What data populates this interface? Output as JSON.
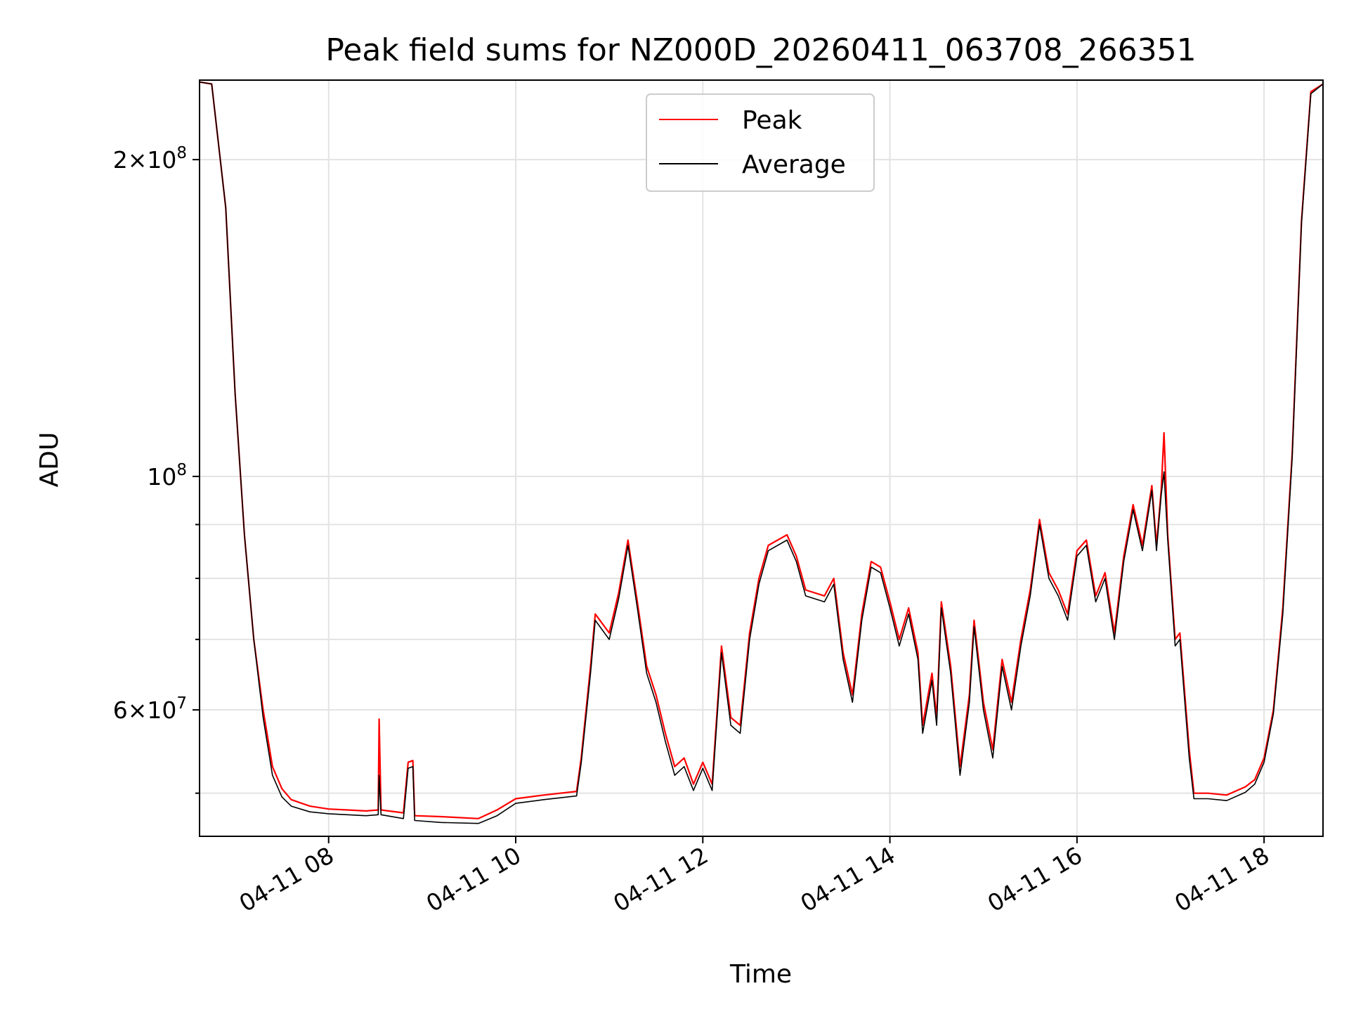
{
  "chart_data": {
    "type": "line",
    "title": "Peak field sums for NZ000D_20260411_063708_266351",
    "xlabel": "Time",
    "ylabel": "ADU",
    "yscale": "log",
    "xlim_hours": [
      6.62,
      18.63
    ],
    "ylim": [
      45500000,
      238000000
    ],
    "grid": true,
    "legend_position": "upper-center",
    "x_ticks": [
      {
        "hour": 8,
        "label": "04-11 08"
      },
      {
        "hour": 10,
        "label": "04-11 10"
      },
      {
        "hour": 12,
        "label": "04-11 12"
      },
      {
        "hour": 14,
        "label": "04-11 14"
      },
      {
        "hour": 16,
        "label": "04-11 16"
      },
      {
        "hour": 18,
        "label": "04-11 18"
      }
    ],
    "y_major_ticks": [
      {
        "value": 60000000,
        "base": "6",
        "exp": "7"
      },
      {
        "value": 100000000,
        "base": "",
        "exp": "8"
      },
      {
        "value": 200000000,
        "base": "2",
        "exp": "8"
      }
    ],
    "y_minor_ticks": [
      50000000,
      70000000,
      80000000,
      90000000
    ],
    "series": [
      {
        "name": "Peak",
        "color": "#ff0000",
        "points": [
          [
            6.62,
            237000000
          ],
          [
            6.75,
            236000000
          ],
          [
            6.9,
            180000000
          ],
          [
            7.0,
            120000000
          ],
          [
            7.1,
            88000000
          ],
          [
            7.2,
            70000000
          ],
          [
            7.3,
            60000000
          ],
          [
            7.4,
            53000000
          ],
          [
            7.5,
            50500000
          ],
          [
            7.6,
            49300000
          ],
          [
            7.8,
            48600000
          ],
          [
            8.0,
            48300000
          ],
          [
            8.2,
            48200000
          ],
          [
            8.4,
            48100000
          ],
          [
            8.53,
            48200000
          ],
          [
            8.54,
            58800000
          ],
          [
            8.56,
            48200000
          ],
          [
            8.8,
            47900000
          ],
          [
            8.85,
            53500000
          ],
          [
            8.9,
            53700000
          ],
          [
            8.92,
            47600000
          ],
          [
            9.2,
            47500000
          ],
          [
            9.6,
            47300000
          ],
          [
            9.8,
            48200000
          ],
          [
            10.0,
            49400000
          ],
          [
            10.3,
            49800000
          ],
          [
            10.65,
            50200000
          ],
          [
            10.7,
            54000000
          ],
          [
            10.8,
            66000000
          ],
          [
            10.85,
            74000000
          ],
          [
            11.0,
            71000000
          ],
          [
            11.1,
            77500000
          ],
          [
            11.2,
            87000000
          ],
          [
            11.3,
            76000000
          ],
          [
            11.4,
            66000000
          ],
          [
            11.5,
            62000000
          ],
          [
            11.6,
            57000000
          ],
          [
            11.7,
            53000000
          ],
          [
            11.8,
            54000000
          ],
          [
            11.9,
            51000000
          ],
          [
            12.0,
            53500000
          ],
          [
            12.1,
            51000000
          ],
          [
            12.2,
            69000000
          ],
          [
            12.3,
            59000000
          ],
          [
            12.4,
            58000000
          ],
          [
            12.5,
            71000000
          ],
          [
            12.6,
            80000000
          ],
          [
            12.7,
            86000000
          ],
          [
            12.9,
            88000000
          ],
          [
            13.0,
            84000000
          ],
          [
            13.1,
            78000000
          ],
          [
            13.3,
            77000000
          ],
          [
            13.4,
            80000000
          ],
          [
            13.5,
            68000000
          ],
          [
            13.6,
            62000000
          ],
          [
            13.7,
            74000000
          ],
          [
            13.8,
            83000000
          ],
          [
            13.9,
            82000000
          ],
          [
            14.0,
            76000000
          ],
          [
            14.1,
            70000000
          ],
          [
            14.2,
            75000000
          ],
          [
            14.3,
            68000000
          ],
          [
            14.35,
            58000000
          ],
          [
            14.45,
            65000000
          ],
          [
            14.5,
            59000000
          ],
          [
            14.55,
            76000000
          ],
          [
            14.65,
            66000000
          ],
          [
            14.75,
            53000000
          ],
          [
            14.85,
            62000000
          ],
          [
            14.9,
            73000000
          ],
          [
            15.0,
            61000000
          ],
          [
            15.1,
            55000000
          ],
          [
            15.2,
            67000000
          ],
          [
            15.3,
            61000000
          ],
          [
            15.4,
            70000000
          ],
          [
            15.5,
            78000000
          ],
          [
            15.6,
            91000000
          ],
          [
            15.7,
            81000000
          ],
          [
            15.8,
            78000000
          ],
          [
            15.9,
            74000000
          ],
          [
            16.0,
            85000000
          ],
          [
            16.1,
            87000000
          ],
          [
            16.2,
            77000000
          ],
          [
            16.3,
            81000000
          ],
          [
            16.4,
            71000000
          ],
          [
            16.5,
            84000000
          ],
          [
            16.6,
            94000000
          ],
          [
            16.7,
            86000000
          ],
          [
            16.8,
            98000000
          ],
          [
            16.85,
            86000000
          ],
          [
            16.9,
            97000000
          ],
          [
            16.93,
            110000000
          ],
          [
            16.97,
            88000000
          ],
          [
            17.05,
            70000000
          ],
          [
            17.1,
            71000000
          ],
          [
            17.2,
            55000000
          ],
          [
            17.25,
            50000000
          ],
          [
            17.4,
            50000000
          ],
          [
            17.6,
            49800000
          ],
          [
            17.8,
            50700000
          ],
          [
            17.9,
            51500000
          ],
          [
            18.0,
            54000000
          ],
          [
            18.1,
            60000000
          ],
          [
            18.2,
            75000000
          ],
          [
            18.3,
            105000000
          ],
          [
            18.4,
            175000000
          ],
          [
            18.5,
            232000000
          ],
          [
            18.63,
            236000000
          ]
        ]
      },
      {
        "name": "Average",
        "color": "#000000",
        "points": [
          [
            6.62,
            237000000
          ],
          [
            6.75,
            236000000
          ],
          [
            6.9,
            180000000
          ],
          [
            7.0,
            120000000
          ],
          [
            7.1,
            88000000
          ],
          [
            7.2,
            70000000
          ],
          [
            7.3,
            59000000
          ],
          [
            7.4,
            52000000
          ],
          [
            7.5,
            49600000
          ],
          [
            7.6,
            48600000
          ],
          [
            7.8,
            48000000
          ],
          [
            8.0,
            47800000
          ],
          [
            8.2,
            47700000
          ],
          [
            8.4,
            47600000
          ],
          [
            8.53,
            47700000
          ],
          [
            8.54,
            52000000
          ],
          [
            8.56,
            47700000
          ],
          [
            8.8,
            47300000
          ],
          [
            8.85,
            52800000
          ],
          [
            8.9,
            53000000
          ],
          [
            8.92,
            47100000
          ],
          [
            9.2,
            46900000
          ],
          [
            9.6,
            46800000
          ],
          [
            9.8,
            47600000
          ],
          [
            10.0,
            48900000
          ],
          [
            10.3,
            49300000
          ],
          [
            10.65,
            49700000
          ],
          [
            10.7,
            53400000
          ],
          [
            10.8,
            65000000
          ],
          [
            10.85,
            73000000
          ],
          [
            11.0,
            70000000
          ],
          [
            11.1,
            76500000
          ],
          [
            11.2,
            86000000
          ],
          [
            11.3,
            75000000
          ],
          [
            11.4,
            65000000
          ],
          [
            11.5,
            61000000
          ],
          [
            11.6,
            56000000
          ],
          [
            11.7,
            52000000
          ],
          [
            11.8,
            53000000
          ],
          [
            11.9,
            50300000
          ],
          [
            12.0,
            52800000
          ],
          [
            12.1,
            50300000
          ],
          [
            12.2,
            68000000
          ],
          [
            12.3,
            58000000
          ],
          [
            12.4,
            57000000
          ],
          [
            12.5,
            70000000
          ],
          [
            12.6,
            79000000
          ],
          [
            12.7,
            85000000
          ],
          [
            12.9,
            87000000
          ],
          [
            13.0,
            83000000
          ],
          [
            13.1,
            77000000
          ],
          [
            13.3,
            76000000
          ],
          [
            13.4,
            79000000
          ],
          [
            13.5,
            67000000
          ],
          [
            13.6,
            61000000
          ],
          [
            13.7,
            73000000
          ],
          [
            13.8,
            82000000
          ],
          [
            13.9,
            81000000
          ],
          [
            14.0,
            75000000
          ],
          [
            14.1,
            69000000
          ],
          [
            14.2,
            74000000
          ],
          [
            14.3,
            67000000
          ],
          [
            14.35,
            57000000
          ],
          [
            14.45,
            64000000
          ],
          [
            14.5,
            58000000
          ],
          [
            14.55,
            75000000
          ],
          [
            14.65,
            65000000
          ],
          [
            14.75,
            52000000
          ],
          [
            14.85,
            61000000
          ],
          [
            14.9,
            72000000
          ],
          [
            15.0,
            60000000
          ],
          [
            15.1,
            54000000
          ],
          [
            15.2,
            66000000
          ],
          [
            15.3,
            60000000
          ],
          [
            15.4,
            69000000
          ],
          [
            15.5,
            77000000
          ],
          [
            15.6,
            90000000
          ],
          [
            15.7,
            80000000
          ],
          [
            15.8,
            77000000
          ],
          [
            15.9,
            73000000
          ],
          [
            16.0,
            84000000
          ],
          [
            16.1,
            86000000
          ],
          [
            16.2,
            76000000
          ],
          [
            16.3,
            80000000
          ],
          [
            16.4,
            70000000
          ],
          [
            16.5,
            83000000
          ],
          [
            16.6,
            93000000
          ],
          [
            16.7,
            85000000
          ],
          [
            16.8,
            97000000
          ],
          [
            16.85,
            85000000
          ],
          [
            16.9,
            96000000
          ],
          [
            16.93,
            101000000
          ],
          [
            16.97,
            87000000
          ],
          [
            17.05,
            69000000
          ],
          [
            17.1,
            70000000
          ],
          [
            17.2,
            54000000
          ],
          [
            17.25,
            49400000
          ],
          [
            17.4,
            49400000
          ],
          [
            17.6,
            49200000
          ],
          [
            17.8,
            50100000
          ],
          [
            17.9,
            51000000
          ],
          [
            18.0,
            53500000
          ],
          [
            18.1,
            59500000
          ],
          [
            18.2,
            74000000
          ],
          [
            18.3,
            104000000
          ],
          [
            18.4,
            174000000
          ],
          [
            18.5,
            231000000
          ],
          [
            18.63,
            236000000
          ]
        ]
      }
    ]
  }
}
